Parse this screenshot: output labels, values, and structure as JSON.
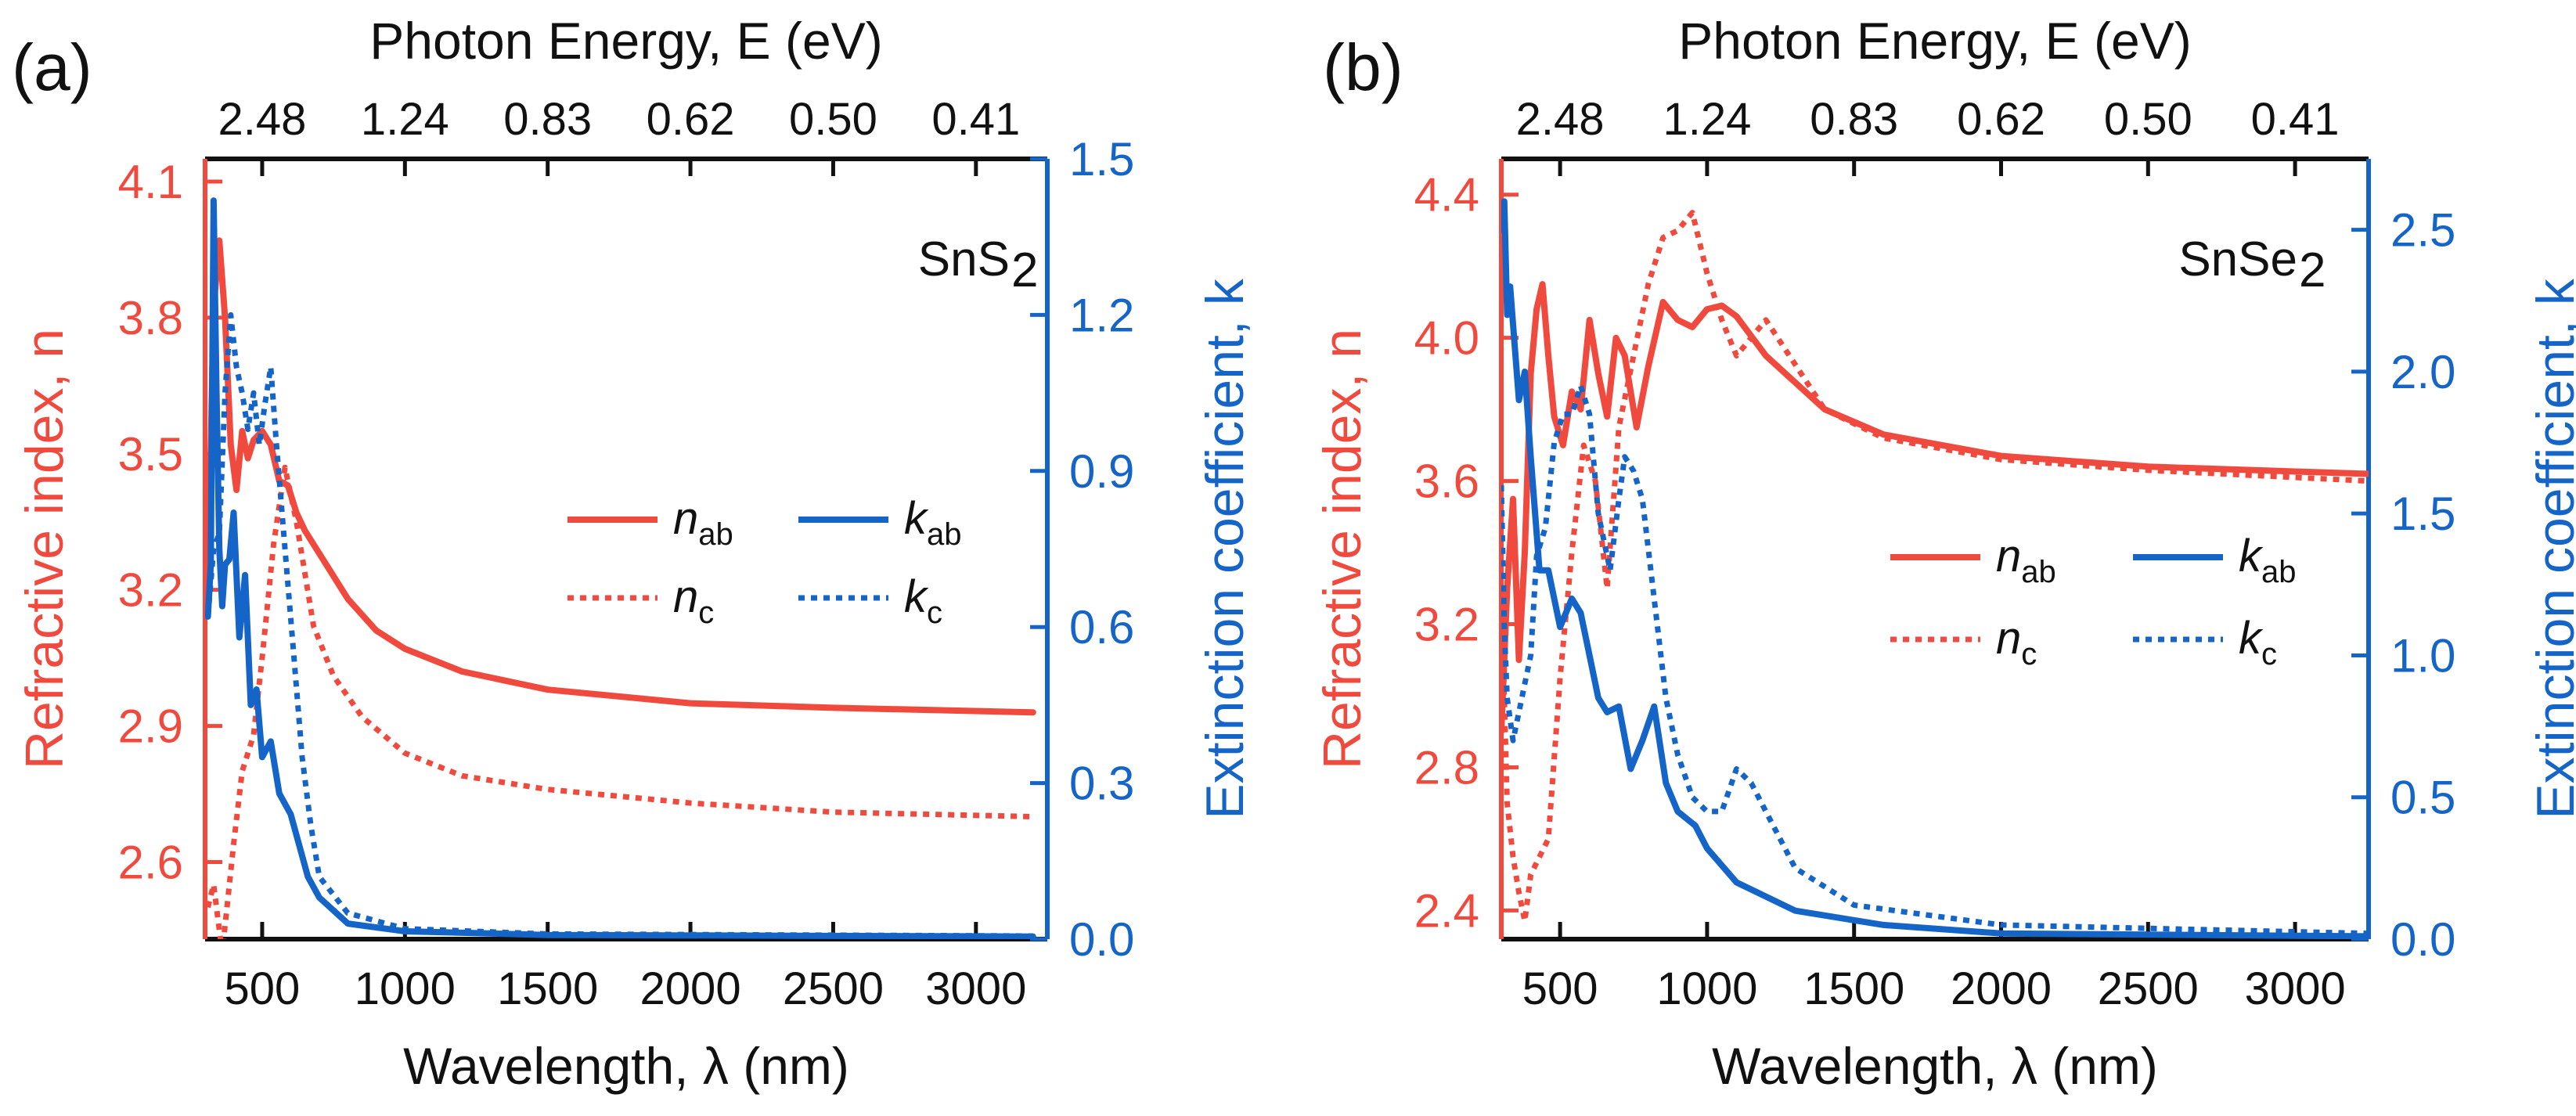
{
  "colors": {
    "n": "#f04a3e",
    "k": "#1565c8",
    "axis": "#111111"
  },
  "chart_data": [
    {
      "type": "line",
      "panel_label": "(a)",
      "material": "SnS",
      "material_sub": "2",
      "xlabel": "Wavelength, λ (nm)",
      "x2label": "Photon Energy, E (eV)",
      "ylabel": "Refractive index, n",
      "y2label": "Extinction coefficient, k",
      "xlim": [
        300,
        3250
      ],
      "ylim": [
        2.43,
        4.15
      ],
      "y2lim": [
        0,
        1.5
      ],
      "xticks": [
        500,
        1000,
        1500,
        2000,
        2500,
        3000
      ],
      "xtick_labels": [
        "500",
        "1000",
        "1500",
        "2000",
        "2500",
        "3000"
      ],
      "yticks": [
        2.6,
        2.9,
        3.2,
        3.5,
        3.8,
        4.1
      ],
      "ytick_labels": [
        "2.6",
        "2.9",
        "3.2",
        "3.5",
        "3.8",
        "4.1"
      ],
      "y2ticks": [
        0.0,
        0.3,
        0.6,
        0.9,
        1.2,
        1.5
      ],
      "y2tick_labels": [
        "0.0",
        "0.3",
        "0.6",
        "0.9",
        "1.2",
        "1.5"
      ],
      "x2ticks": [
        500,
        1000,
        1500,
        2000,
        2500,
        3000
      ],
      "x2tick_labels": [
        "2.48",
        "1.24",
        "0.83",
        "0.62",
        "0.50",
        "0.41"
      ],
      "legend": [
        {
          "label": "n",
          "sub": "ab"
        },
        {
          "label": "k",
          "sub": "ab"
        },
        {
          "label": "n",
          "sub": "c"
        },
        {
          "label": "k",
          "sub": "c"
        }
      ],
      "series": [
        {
          "name": "n_ab",
          "axis": "left",
          "style": "solid",
          "color": "#f04a3e",
          "x": [
            310,
            330,
            350,
            370,
            390,
            410,
            430,
            450,
            470,
            500,
            530,
            560,
            590,
            620,
            650,
            700,
            800,
            900,
            1000,
            1200,
            1500,
            2000,
            2500,
            3200
          ],
          "y": [
            3.2,
            3.82,
            3.97,
            3.8,
            3.52,
            3.42,
            3.55,
            3.49,
            3.53,
            3.55,
            3.52,
            3.44,
            3.43,
            3.37,
            3.33,
            3.28,
            3.18,
            3.11,
            3.07,
            3.02,
            2.98,
            2.95,
            2.94,
            2.93
          ]
        },
        {
          "name": "n_c",
          "axis": "left",
          "style": "dotted",
          "color": "#f04a3e",
          "x": [
            310,
            330,
            360,
            400,
            430,
            470,
            500,
            540,
            580,
            620,
            680,
            750,
            850,
            1000,
            1200,
            1500,
            2000,
            2500,
            3200
          ],
          "y": [
            2.5,
            2.55,
            2.4,
            2.64,
            2.8,
            2.88,
            3.05,
            3.3,
            3.47,
            3.35,
            3.12,
            3.01,
            2.92,
            2.84,
            2.79,
            2.76,
            2.73,
            2.71,
            2.7
          ]
        },
        {
          "name": "k_ab",
          "axis": "right",
          "style": "solid",
          "color": "#1565c8",
          "x": [
            310,
            320,
            330,
            340,
            350,
            360,
            370,
            385,
            400,
            420,
            440,
            460,
            480,
            500,
            530,
            560,
            600,
            630,
            660,
            700,
            800,
            1000,
            1500,
            3200
          ],
          "y": [
            0.62,
            0.72,
            1.42,
            1.05,
            0.75,
            0.64,
            0.72,
            0.73,
            0.82,
            0.58,
            0.7,
            0.45,
            0.48,
            0.35,
            0.38,
            0.28,
            0.24,
            0.18,
            0.12,
            0.08,
            0.03,
            0.015,
            0.008,
            0.005
          ]
        },
        {
          "name": "k_c",
          "axis": "right",
          "style": "dotted",
          "color": "#1565c8",
          "x": [
            310,
            330,
            350,
            370,
            390,
            410,
            430,
            450,
            470,
            490,
            510,
            530,
            550,
            580,
            610,
            640,
            670,
            700,
            800,
            1000,
            1500,
            3200
          ],
          "y": [
            0.62,
            0.75,
            0.78,
            1.05,
            1.2,
            1.1,
            1.05,
            0.98,
            1.05,
            0.95,
            1.03,
            1.1,
            0.95,
            0.75,
            0.55,
            0.35,
            0.22,
            0.12,
            0.05,
            0.02,
            0.01,
            0.006
          ]
        }
      ]
    },
    {
      "type": "line",
      "panel_label": "(b)",
      "material": "SnSe",
      "material_sub": "2",
      "xlabel": "Wavelength, λ (nm)",
      "x2label": "Photon Energy, E (eV)",
      "ylabel": "Refractive index, n",
      "y2label": "Extinction coefficient, k",
      "xlim": [
        300,
        3250
      ],
      "ylim": [
        2.32,
        4.5
      ],
      "y2lim": [
        0,
        2.75
      ],
      "xticks": [
        500,
        1000,
        1500,
        2000,
        2500,
        3000
      ],
      "xtick_labels": [
        "500",
        "1000",
        "1500",
        "2000",
        "2500",
        "3000"
      ],
      "yticks": [
        2.4,
        2.8,
        3.2,
        3.6,
        4.0,
        4.4
      ],
      "ytick_labels": [
        "2.4",
        "2.8",
        "3.2",
        "3.6",
        "4.0",
        "4.4"
      ],
      "y2ticks": [
        0.0,
        0.5,
        1.0,
        1.5,
        2.0,
        2.5
      ],
      "y2tick_labels": [
        "0.0",
        "0.5",
        "1.0",
        "1.5",
        "2.0",
        "2.5"
      ],
      "x2ticks": [
        500,
        1000,
        1500,
        2000,
        2500,
        3000
      ],
      "x2tick_labels": [
        "2.48",
        "1.24",
        "0.83",
        "0.62",
        "0.50",
        "0.41"
      ],
      "legend": [
        {
          "label": "n",
          "sub": "ab"
        },
        {
          "label": "k",
          "sub": "ab"
        },
        {
          "label": "n",
          "sub": "c"
        },
        {
          "label": "k",
          "sub": "c"
        }
      ],
      "series": [
        {
          "name": "n_ab",
          "axis": "left",
          "style": "solid",
          "color": "#f04a3e",
          "x": [
            300,
            320,
            340,
            360,
            380,
            400,
            420,
            440,
            460,
            480,
            510,
            540,
            570,
            600,
            630,
            660,
            690,
            720,
            760,
            800,
            850,
            900,
            950,
            1000,
            1050,
            1100,
            1200,
            1400,
            1600,
            2000,
            2500,
            3250
          ],
          "y": [
            2.9,
            3.3,
            3.55,
            3.1,
            3.4,
            3.9,
            4.08,
            4.15,
            3.95,
            3.78,
            3.7,
            3.85,
            3.8,
            4.05,
            3.9,
            3.78,
            4.0,
            3.95,
            3.75,
            3.92,
            4.1,
            4.05,
            4.03,
            4.08,
            4.09,
            4.06,
            3.95,
            3.8,
            3.73,
            3.67,
            3.64,
            3.62
          ]
        },
        {
          "name": "n_c",
          "axis": "left",
          "style": "dotted",
          "color": "#f04a3e",
          "x": [
            300,
            320,
            340,
            360,
            380,
            400,
            430,
            460,
            500,
            540,
            580,
            620,
            660,
            700,
            750,
            800,
            850,
            900,
            950,
            1000,
            1050,
            1100,
            1200,
            1400,
            1600,
            2000,
            2500,
            3250
          ],
          "y": [
            3.3,
            2.7,
            2.55,
            2.45,
            2.37,
            2.5,
            2.55,
            2.6,
            3.05,
            3.4,
            3.7,
            3.6,
            3.3,
            3.75,
            3.95,
            4.15,
            4.28,
            4.3,
            4.35,
            4.18,
            4.05,
            3.95,
            4.05,
            3.8,
            3.72,
            3.66,
            3.63,
            3.6
          ]
        },
        {
          "name": "k_ab",
          "axis": "right",
          "style": "solid",
          "color": "#1565c8",
          "x": [
            300,
            310,
            320,
            330,
            345,
            360,
            380,
            400,
            430,
            460,
            500,
            540,
            570,
            600,
            630,
            660,
            700,
            740,
            780,
            820,
            860,
            900,
            960,
            1000,
            1100,
            1300,
            1600,
            2000,
            3250
          ],
          "y": [
            2.5,
            2.6,
            2.2,
            2.3,
            2.1,
            1.9,
            2.0,
            1.7,
            1.3,
            1.3,
            1.1,
            1.2,
            1.15,
            1.0,
            0.85,
            0.8,
            0.82,
            0.6,
            0.7,
            0.82,
            0.55,
            0.45,
            0.4,
            0.32,
            0.2,
            0.1,
            0.05,
            0.02,
            0.01
          ]
        },
        {
          "name": "k_c",
          "axis": "right",
          "style": "dotted",
          "color": "#1565c8",
          "x": [
            300,
            310,
            320,
            340,
            360,
            380,
            400,
            420,
            450,
            480,
            510,
            540,
            570,
            600,
            630,
            670,
            700,
            720,
            750,
            780,
            820,
            860,
            900,
            950,
            1000,
            1050,
            1100,
            1150,
            1200,
            1300,
            1500,
            2000,
            3250
          ],
          "y": [
            1.6,
            1.1,
            0.85,
            0.7,
            0.8,
            0.9,
            1.0,
            1.35,
            1.45,
            1.75,
            1.85,
            1.85,
            1.95,
            1.85,
            1.5,
            1.3,
            1.55,
            1.7,
            1.65,
            1.55,
            1.2,
            0.85,
            0.65,
            0.5,
            0.45,
            0.45,
            0.6,
            0.55,
            0.45,
            0.25,
            0.12,
            0.05,
            0.02
          ]
        }
      ]
    }
  ]
}
